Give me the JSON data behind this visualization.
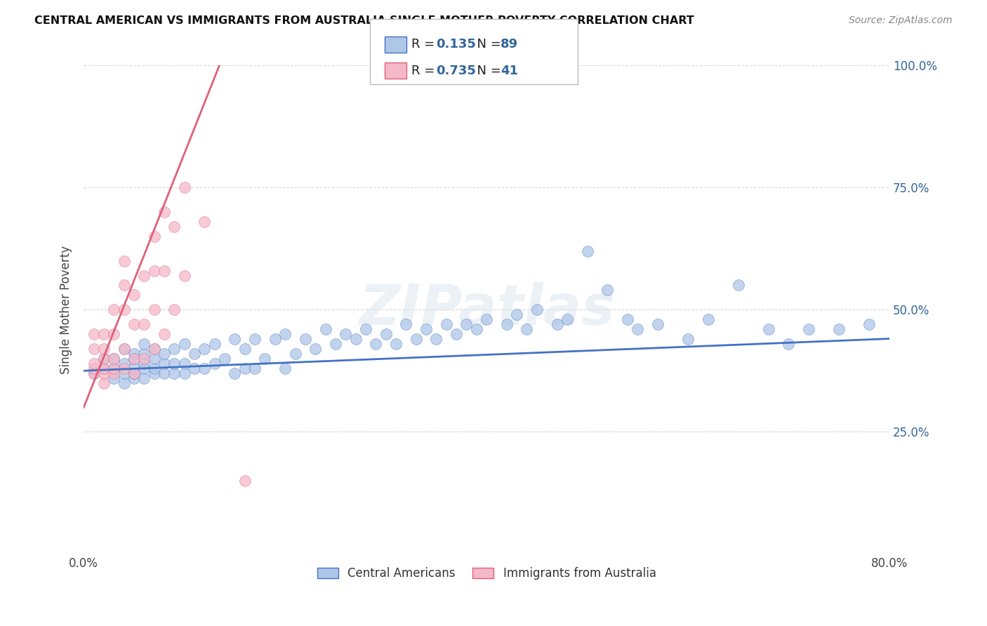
{
  "title": "CENTRAL AMERICAN VS IMMIGRANTS FROM AUSTRALIA SINGLE MOTHER POVERTY CORRELATION CHART",
  "source": "Source: ZipAtlas.com",
  "ylabel": "Single Mother Poverty",
  "x_min": 0.0,
  "x_max": 0.8,
  "y_min": 0.0,
  "y_max": 1.0,
  "blue_R": 0.135,
  "blue_N": 89,
  "pink_R": 0.735,
  "pink_N": 41,
  "blue_color": "#aec6e8",
  "blue_line_color": "#4472c4",
  "pink_color": "#f4b8c8",
  "pink_line_color": "#e0607a",
  "legend_blue_label": "Central Americans",
  "legend_pink_label": "Immigrants from Australia",
  "watermark": "ZIPatlas",
  "blue_scatter_x": [
    0.01,
    0.02,
    0.02,
    0.03,
    0.03,
    0.03,
    0.04,
    0.04,
    0.04,
    0.04,
    0.05,
    0.05,
    0.05,
    0.05,
    0.05,
    0.06,
    0.06,
    0.06,
    0.06,
    0.06,
    0.07,
    0.07,
    0.07,
    0.07,
    0.08,
    0.08,
    0.08,
    0.09,
    0.09,
    0.09,
    0.1,
    0.1,
    0.1,
    0.11,
    0.11,
    0.12,
    0.12,
    0.13,
    0.13,
    0.14,
    0.15,
    0.15,
    0.16,
    0.16,
    0.17,
    0.17,
    0.18,
    0.19,
    0.2,
    0.2,
    0.21,
    0.22,
    0.23,
    0.24,
    0.25,
    0.26,
    0.27,
    0.28,
    0.29,
    0.3,
    0.31,
    0.32,
    0.33,
    0.34,
    0.35,
    0.36,
    0.37,
    0.38,
    0.39,
    0.4,
    0.42,
    0.43,
    0.44,
    0.45,
    0.47,
    0.48,
    0.5,
    0.52,
    0.54,
    0.55,
    0.57,
    0.6,
    0.62,
    0.65,
    0.68,
    0.7,
    0.72,
    0.75,
    0.78
  ],
  "blue_scatter_y": [
    0.37,
    0.38,
    0.4,
    0.36,
    0.38,
    0.4,
    0.35,
    0.37,
    0.39,
    0.42,
    0.36,
    0.37,
    0.38,
    0.4,
    0.41,
    0.36,
    0.38,
    0.39,
    0.41,
    0.43,
    0.37,
    0.38,
    0.4,
    0.42,
    0.37,
    0.39,
    0.41,
    0.37,
    0.39,
    0.42,
    0.37,
    0.39,
    0.43,
    0.38,
    0.41,
    0.38,
    0.42,
    0.39,
    0.43,
    0.4,
    0.37,
    0.44,
    0.38,
    0.42,
    0.38,
    0.44,
    0.4,
    0.44,
    0.38,
    0.45,
    0.41,
    0.44,
    0.42,
    0.46,
    0.43,
    0.45,
    0.44,
    0.46,
    0.43,
    0.45,
    0.43,
    0.47,
    0.44,
    0.46,
    0.44,
    0.47,
    0.45,
    0.47,
    0.46,
    0.48,
    0.47,
    0.49,
    0.46,
    0.5,
    0.47,
    0.48,
    0.62,
    0.54,
    0.48,
    0.46,
    0.47,
    0.44,
    0.48,
    0.55,
    0.46,
    0.43,
    0.46,
    0.46,
    0.47
  ],
  "pink_scatter_x": [
    0.01,
    0.01,
    0.01,
    0.01,
    0.01,
    0.02,
    0.02,
    0.02,
    0.02,
    0.02,
    0.02,
    0.03,
    0.03,
    0.03,
    0.03,
    0.03,
    0.04,
    0.04,
    0.04,
    0.04,
    0.04,
    0.05,
    0.05,
    0.05,
    0.05,
    0.06,
    0.06,
    0.06,
    0.07,
    0.07,
    0.07,
    0.07,
    0.08,
    0.08,
    0.08,
    0.09,
    0.09,
    0.1,
    0.1,
    0.12,
    0.16
  ],
  "pink_scatter_y": [
    0.37,
    0.38,
    0.39,
    0.42,
    0.45,
    0.35,
    0.37,
    0.38,
    0.4,
    0.42,
    0.45,
    0.37,
    0.38,
    0.4,
    0.45,
    0.5,
    0.38,
    0.42,
    0.5,
    0.55,
    0.6,
    0.37,
    0.4,
    0.47,
    0.53,
    0.4,
    0.47,
    0.57,
    0.42,
    0.5,
    0.58,
    0.65,
    0.45,
    0.58,
    0.7,
    0.5,
    0.67,
    0.57,
    0.75,
    0.68,
    0.15
  ],
  "pink_line_x_start": 0.0,
  "pink_line_x_end": 0.15,
  "blue_line_intercept": 0.375,
  "blue_line_slope": 0.082,
  "pink_line_intercept": 0.3,
  "pink_line_slope": 5.2
}
